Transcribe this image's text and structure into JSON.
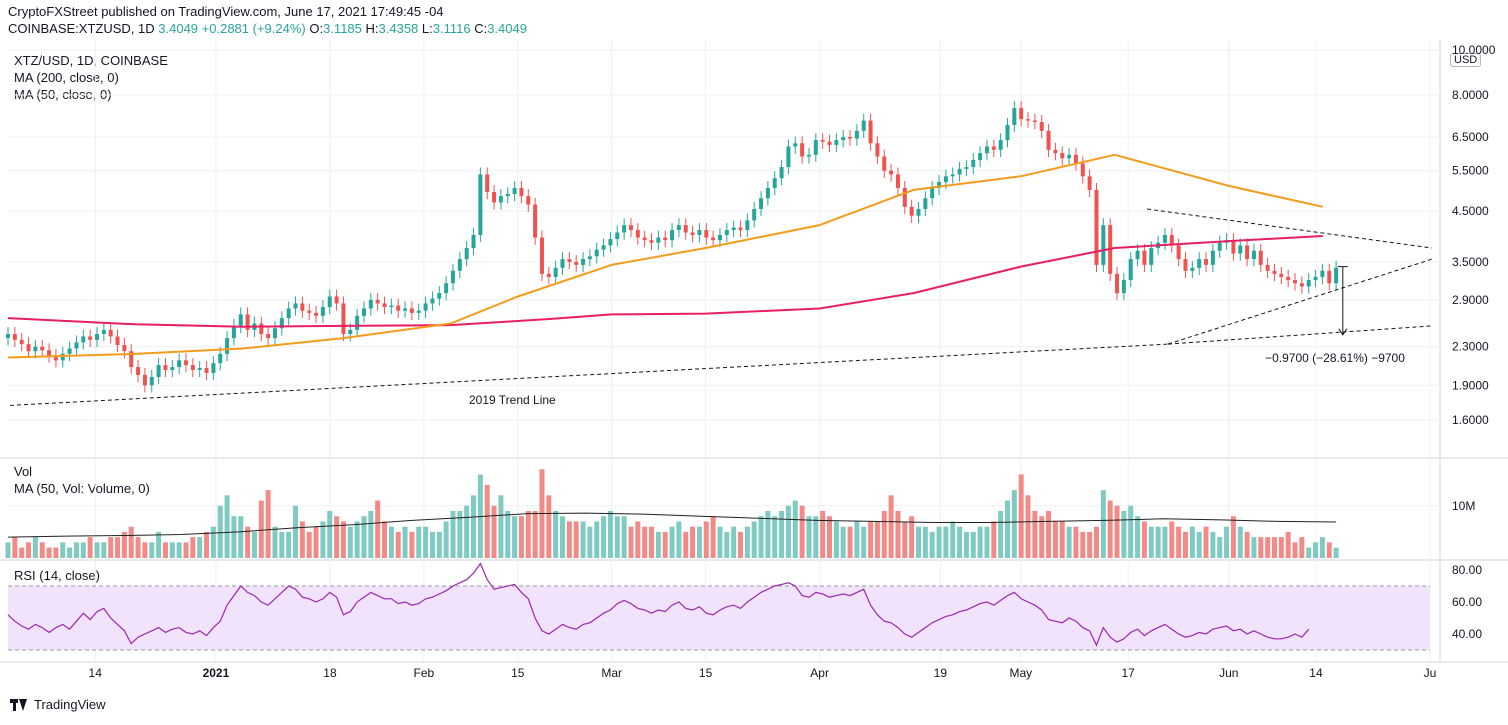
{
  "header": {
    "publisher_line": "CryptoFXStreet published on TradingView.com, June 17, 2021 17:49:45 -04",
    "symbol": "COINBASE:XTZUSD, 1D",
    "last": "3.4049",
    "change": "+0.2881 (+9.24%)",
    "o_label": "O:",
    "o": "3.1185",
    "h_label": "H:",
    "h": "3.4358",
    "l_label": "L:",
    "l": "3.1116",
    "c_label": "C:",
    "c": "3.4049"
  },
  "legends": {
    "main_title": "XTZ/USD, 1D, COINBASE",
    "ma200": "MA (200, close, 0)",
    "ma50": "MA (50, close, 0)",
    "vol_title": "Vol",
    "vol_ma": "MA (50, Vol: Volume, 0)",
    "rsi_title": "RSI (14, close)"
  },
  "currency_badge": "USD",
  "footer": {
    "brand": "TradingView"
  },
  "colors": {
    "up": "#26a69a",
    "down": "#ef5350",
    "up_vol": "#7fcac2",
    "down_vol": "#f28b88",
    "ma50": "#f59b1c",
    "ma200": "#e91e63",
    "rsi": "#9c27b0",
    "rsi_band": "#f1e3fb",
    "vol_ma": "#222222",
    "grid": "#eef0f3"
  },
  "chart_data": [
    {
      "name": "price",
      "type": "candlestick",
      "title": "XTZ/USD, 1D, COINBASE",
      "yscale": "log",
      "ylim": [
        1.4,
        10.0
      ],
      "y_ticks": [
        "10.0000",
        "8.0000",
        "6.5000",
        "5.5000",
        "4.5000",
        "3.5000",
        "2.9000",
        "2.3000",
        "1.9000",
        "1.6000"
      ],
      "x_ticks": [
        "14",
        "2021",
        "18",
        "Feb",
        "15",
        "Mar",
        "15",
        "Apr",
        "19",
        "May",
        "17",
        "Jun",
        "14",
        "Ju"
      ],
      "x_range": [
        "2020-12-01",
        "2021-07-01"
      ],
      "ohlc_close_series": [
        2.45,
        2.38,
        2.33,
        2.25,
        2.3,
        2.26,
        2.2,
        2.15,
        2.22,
        2.28,
        2.35,
        2.42,
        2.38,
        2.45,
        2.5,
        2.42,
        2.32,
        2.25,
        2.08,
        2.0,
        1.9,
        1.98,
        2.1,
        2.05,
        2.08,
        2.15,
        2.1,
        2.05,
        2.07,
        2.02,
        2.12,
        2.22,
        2.4,
        2.55,
        2.7,
        2.5,
        2.58,
        2.45,
        2.4,
        2.52,
        2.65,
        2.78,
        2.85,
        2.75,
        2.72,
        2.68,
        2.8,
        2.95,
        2.85,
        2.45,
        2.5,
        2.68,
        2.78,
        2.9,
        2.85,
        2.8,
        2.82,
        2.75,
        2.78,
        2.72,
        2.75,
        2.85,
        2.92,
        3.0,
        3.15,
        3.35,
        3.55,
        3.75,
        4.0,
        5.4,
        4.95,
        4.7,
        4.85,
        4.9,
        5.05,
        4.85,
        4.65,
        3.95,
        3.3,
        3.25,
        3.4,
        3.55,
        3.5,
        3.45,
        3.55,
        3.6,
        3.72,
        3.8,
        3.92,
        4.05,
        4.2,
        4.1,
        3.95,
        3.9,
        3.85,
        3.95,
        3.9,
        4.1,
        4.2,
        4.05,
        4.0,
        4.1,
        3.95,
        3.9,
        4.0,
        4.1,
        4.15,
        4.1,
        4.3,
        4.55,
        4.8,
        5.05,
        5.3,
        5.6,
        6.2,
        6.3,
        5.9,
        5.95,
        6.4,
        6.35,
        6.25,
        6.4,
        6.5,
        6.45,
        6.7,
        7.05,
        6.3,
        5.9,
        5.5,
        5.4,
        5.05,
        4.6,
        4.4,
        4.55,
        4.8,
        5.05,
        5.2,
        5.35,
        5.4,
        5.55,
        5.6,
        5.8,
        6.0,
        6.2,
        6.1,
        6.4,
        6.9,
        7.5,
        7.1,
        7.05,
        7.0,
        6.7,
        6.1,
        6.0,
        5.85,
        5.95,
        5.7,
        5.35,
        5.0,
        3.45,
        4.2,
        3.3,
        3.0,
        3.2,
        3.55,
        3.7,
        3.45,
        3.75,
        3.85,
        4.0,
        3.8,
        3.55,
        3.35,
        3.4,
        3.55,
        3.45,
        3.7,
        3.85,
        3.9,
        3.65,
        3.8,
        3.55,
        3.7,
        3.45,
        3.35,
        3.3,
        3.25,
        3.2,
        3.15,
        3.1,
        3.2,
        3.25,
        3.35,
        3.15,
        3.4
      ]
    },
    {
      "name": "ma200",
      "type": "line",
      "label": "MA (200, close, 0)",
      "x": [
        "2020-12-01",
        "2020-12-20",
        "2021-01-05",
        "2021-01-20",
        "2021-02-05",
        "2021-02-20",
        "2021-03-01",
        "2021-03-15",
        "2021-04-01",
        "2021-04-15",
        "2021-05-01",
        "2021-05-15",
        "2021-06-01",
        "2021-06-15"
      ],
      "values": [
        2.65,
        2.57,
        2.54,
        2.55,
        2.56,
        2.64,
        2.7,
        2.71,
        2.78,
        3.0,
        3.42,
        3.75,
        3.88,
        3.98
      ]
    },
    {
      "name": "ma50",
      "type": "line",
      "label": "MA (50, close, 0)",
      "x": [
        "2020-12-01",
        "2020-12-20",
        "2021-01-05",
        "2021-01-20",
        "2021-02-05",
        "2021-02-15",
        "2021-03-01",
        "2021-03-15",
        "2021-04-01",
        "2021-04-15",
        "2021-05-01",
        "2021-05-15",
        "2021-06-01",
        "2021-06-15"
      ],
      "values": [
        2.18,
        2.22,
        2.28,
        2.4,
        2.58,
        2.95,
        3.45,
        3.75,
        4.2,
        5.0,
        5.35,
        5.95,
        5.1,
        4.6
      ]
    },
    {
      "name": "annotations",
      "type": "annotations",
      "trend_line_label": "2019 Trend Line",
      "measure_label": "−0.9700 (−28.61%) −9700"
    },
    {
      "name": "volume",
      "type": "bar",
      "title": "Vol",
      "y_ticks": [
        "10M"
      ],
      "ma_label": "MA (50, Vol: Volume, 0)",
      "values_m": [
        3,
        4,
        2,
        3,
        4,
        3,
        2,
        2,
        3,
        2,
        3,
        3,
        4,
        3,
        3,
        4,
        4,
        5,
        6,
        4,
        3,
        3,
        5,
        3,
        3,
        3,
        3,
        4,
        4,
        5,
        6,
        10,
        12,
        8,
        8,
        6,
        5,
        11,
        13,
        6,
        5,
        5,
        10,
        7,
        5,
        6,
        7,
        9,
        8,
        7,
        6,
        7,
        8,
        9,
        11,
        7,
        6,
        5,
        6,
        5,
        6,
        6,
        5,
        5,
        7,
        9,
        9,
        10,
        12,
        16,
        14,
        10,
        12,
        9,
        8,
        8,
        9,
        9,
        17,
        12,
        9,
        8,
        7,
        7,
        7,
        6,
        7,
        8,
        9,
        8,
        8,
        6,
        7,
        6,
        6,
        5,
        5,
        6,
        7,
        5,
        6,
        6,
        7,
        8,
        6,
        5,
        6,
        5,
        6,
        7,
        8,
        9,
        8,
        9,
        10,
        11,
        10,
        8,
        8,
        9,
        8,
        7,
        6,
        6,
        7,
        6,
        7,
        7,
        9,
        12,
        9,
        7,
        8,
        6,
        6,
        5,
        6,
        6,
        7,
        6,
        5,
        5,
        6,
        6,
        7,
        9,
        11,
        13,
        16,
        12,
        9,
        8,
        9,
        7,
        7,
        6,
        6,
        5,
        5,
        6,
        13,
        11,
        10,
        9,
        10,
        8,
        7,
        6,
        6,
        6,
        7,
        6,
        5,
        6,
        5,
        6,
        5,
        4,
        6,
        8,
        6,
        5,
        4,
        4,
        4,
        4,
        4,
        5
      ],
      "ma_values_m": [
        4,
        4.2,
        4.3,
        4.5,
        5.0,
        5.8,
        6.4,
        7.2,
        7.8,
        8.5,
        8.6,
        8.4,
        8.0,
        7.6,
        7.2,
        7.0,
        6.8,
        6.8,
        7.0,
        7.2,
        7.5,
        7.3,
        7.0,
        6.9
      ]
    },
    {
      "name": "rsi",
      "type": "line",
      "title": "RSI (14, close)",
      "ylim": [
        25,
        85
      ],
      "y_ticks": [
        "80.00",
        "60.00",
        "40.00"
      ],
      "band": [
        30,
        70
      ],
      "values": [
        52,
        48,
        45,
        43,
        46,
        44,
        41,
        44,
        46,
        43,
        48,
        53,
        49,
        54,
        56,
        50,
        46,
        42,
        34,
        38,
        40,
        42,
        44,
        41,
        43,
        44,
        41,
        40,
        42,
        39,
        44,
        48,
        58,
        64,
        70,
        66,
        64,
        60,
        58,
        62,
        66,
        70,
        68,
        63,
        62,
        60,
        62,
        66,
        63,
        52,
        54,
        60,
        63,
        66,
        64,
        62,
        62,
        59,
        60,
        58,
        59,
        62,
        63,
        65,
        67,
        70,
        72,
        74,
        78,
        84,
        74,
        68,
        69,
        70,
        71,
        66,
        62,
        50,
        42,
        40,
        43,
        46,
        44,
        43,
        46,
        47,
        50,
        53,
        55,
        59,
        61,
        59,
        56,
        55,
        53,
        55,
        54,
        58,
        60,
        56,
        55,
        57,
        53,
        52,
        55,
        57,
        58,
        56,
        60,
        63,
        66,
        68,
        70,
        71,
        72,
        70,
        64,
        63,
        66,
        65,
        63,
        64,
        65,
        64,
        66,
        68,
        58,
        52,
        48,
        47,
        44,
        40,
        38,
        41,
        44,
        47,
        49,
        51,
        52,
        54,
        55,
        57,
        59,
        60,
        58,
        61,
        64,
        66,
        62,
        60,
        58,
        55,
        49,
        48,
        47,
        50,
        48,
        44,
        42,
        33,
        44,
        38,
        35,
        37,
        41,
        43,
        39,
        42,
        44,
        46,
        43,
        40,
        38,
        39,
        41,
        40,
        43,
        44,
        45,
        42,
        43,
        40,
        42,
        40,
        38,
        37,
        37,
        38,
        40,
        38,
        43
      ]
    }
  ]
}
